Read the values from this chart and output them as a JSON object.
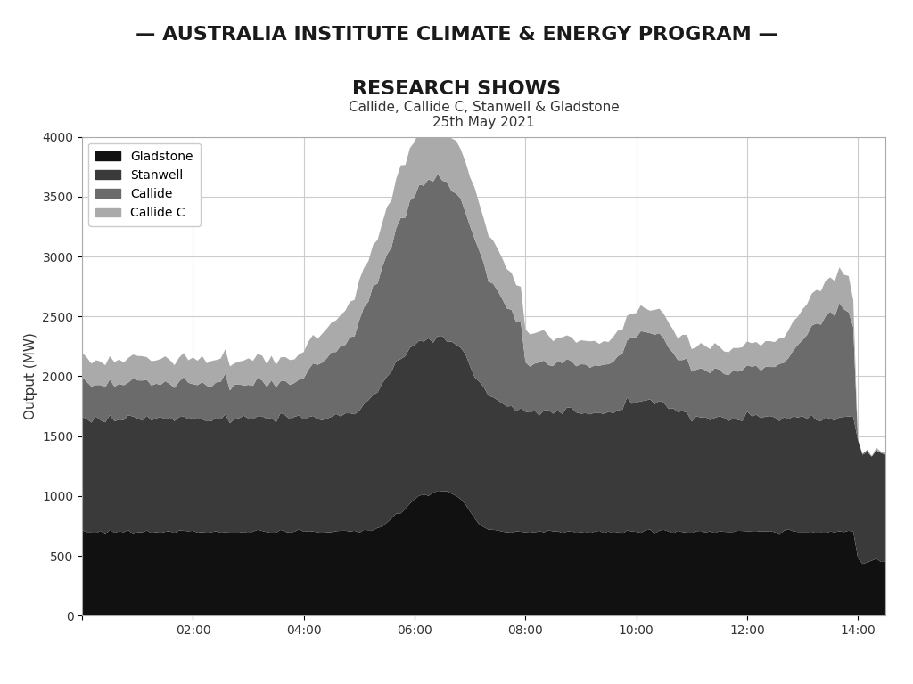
{
  "title_main": "— AUSTRALIA INSTITUTE CLIMATE & ENERGY PROGRAM —\nRESEARCH SHOWS",
  "subtitle": "Callide, Callide C, Stanwell & Gladstone\n25th May 2021",
  "xlabel": "",
  "ylabel": "Output (MW)",
  "ylim": [
    0,
    4000
  ],
  "yticks": [
    0,
    500,
    1000,
    1500,
    2000,
    2500,
    3000,
    3500,
    4000
  ],
  "colors": {
    "Gladstone": "#111111",
    "Stanwell": "#3a3a3a",
    "Callide": "#6b6b6b",
    "Callide C": "#aaaaaa"
  },
  "background_color": "#ffffff",
  "title_color": "#1a1a1a",
  "title_dash_color": "#c8882a",
  "grid_color": "#cccccc"
}
